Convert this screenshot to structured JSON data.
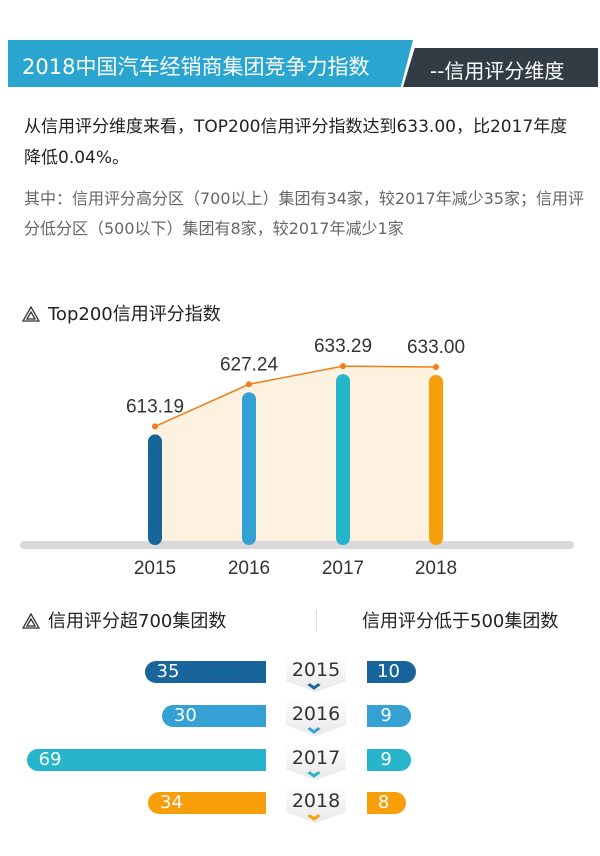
{
  "header": {
    "title": "2018中国汽车经销商集团竞争力指数",
    "subtitle": "--信用评分维度"
  },
  "intro": {
    "main": "从信用评分维度来看，TOP200信用评分指数达到633.00，比2017年度降低0.04%。",
    "detail": "其中：信用评分高分区（700以上）集团有34家，较2017年减少35家；信用评分低分区（500以下）集团有8家，较2017年减少1家"
  },
  "colors": {
    "2015": "#17659a",
    "2016": "#35a0d4",
    "2017": "#26b5cb",
    "2018": "#f99e0b",
    "header": "#2aa5cf",
    "line": "#f27d1a"
  },
  "chart_data": [
    {
      "type": "bar",
      "title": "Top200信用评分指数",
      "categories": [
        "2015",
        "2016",
        "2017",
        "2018"
      ],
      "values": [
        613.19,
        627.24,
        633.29,
        633.0
      ],
      "labels": [
        "613.19",
        "627.24",
        "633.29",
        "633.00"
      ],
      "ylim": [
        575,
        645
      ],
      "overlay": "line"
    },
    {
      "type": "bar",
      "orientation": "horizontal",
      "title": "信用评分超700集团数",
      "categories": [
        "2015",
        "2016",
        "2017",
        "2018"
      ],
      "values": [
        35,
        30,
        69,
        34
      ]
    },
    {
      "type": "bar",
      "orientation": "horizontal",
      "title": "信用评分低于500集团数",
      "categories": [
        "2015",
        "2016",
        "2017",
        "2018"
      ],
      "values": [
        10,
        9,
        9,
        8
      ]
    }
  ]
}
